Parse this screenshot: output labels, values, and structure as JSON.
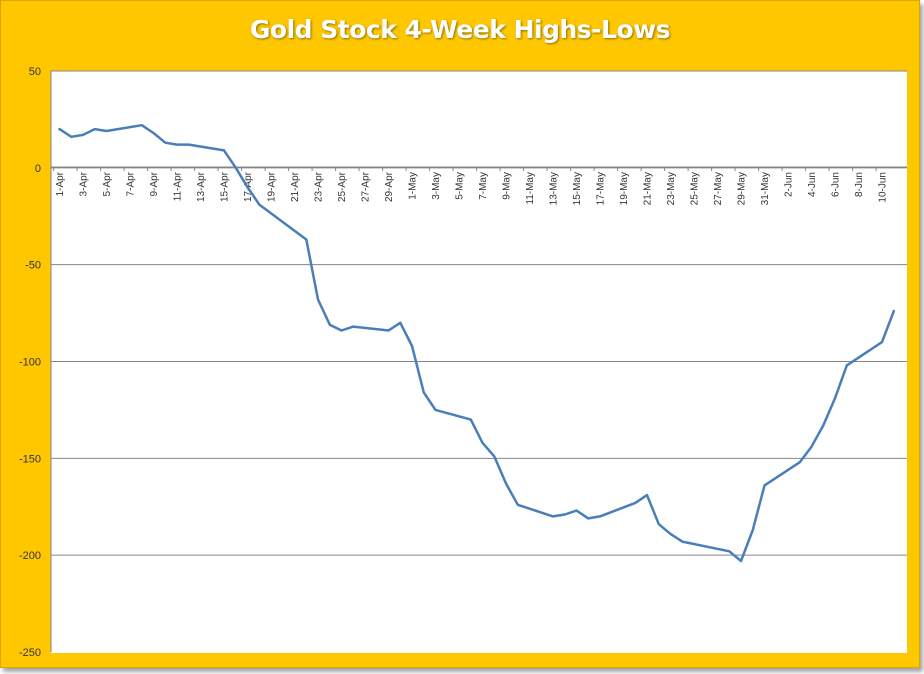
{
  "title": "Gold Stock 4-Week Highs-Lows",
  "colors": {
    "background": "#FFC700",
    "plot_background": "#FFFFFF",
    "series": "#4A7EBB",
    "gridline": "#868686",
    "title_text": "#FFFFFF"
  },
  "chart_data": {
    "type": "line",
    "title": "Gold Stock 4-Week Highs-Lows",
    "xlabel": "",
    "ylabel": "",
    "ylim": [
      -250,
      50
    ],
    "yticks": [
      50,
      0,
      -50,
      -100,
      -150,
      -200,
      -250
    ],
    "grid": true,
    "legend": "none",
    "x_tick_labels": [
      "1-Apr",
      "3-Apr",
      "5-Apr",
      "7-Apr",
      "9-Apr",
      "11-Apr",
      "13-Apr",
      "15-Apr",
      "17-Apr",
      "19-Apr",
      "21-Apr",
      "23-Apr",
      "25-Apr",
      "27-Apr",
      "29-Apr",
      "1-May",
      "3-May",
      "5-May",
      "7-May",
      "9-May",
      "11-May",
      "13-May",
      "15-May",
      "17-May",
      "19-May",
      "21-May",
      "23-May",
      "25-May",
      "27-May",
      "29-May",
      "31-May",
      "2-Jun",
      "4-Jun",
      "6-Jun",
      "8-Jun",
      "10-Jun"
    ],
    "series": [
      {
        "points": [
          [
            "1-Apr",
            20
          ],
          [
            "2-Apr",
            16
          ],
          [
            "3-Apr",
            17
          ],
          [
            "4-Apr",
            20
          ],
          [
            "5-Apr",
            19
          ],
          [
            "8-Apr",
            22
          ],
          [
            "9-Apr",
            18
          ],
          [
            "10-Apr",
            13
          ],
          [
            "11-Apr",
            12
          ],
          [
            "12-Apr",
            12
          ],
          [
            "15-Apr",
            9
          ],
          [
            "16-Apr",
            0
          ],
          [
            "17-Apr",
            -10
          ],
          [
            "18-Apr",
            -19
          ],
          [
            "22-Apr",
            -37
          ],
          [
            "23-Apr",
            -68
          ],
          [
            "24-Apr",
            -81
          ],
          [
            "25-Apr",
            -84
          ],
          [
            "26-Apr",
            -82
          ],
          [
            "29-Apr",
            -84
          ],
          [
            "30-Apr",
            -80
          ],
          [
            "1-May",
            -92
          ],
          [
            "2-May",
            -116
          ],
          [
            "3-May",
            -125
          ],
          [
            "6-May",
            -130
          ],
          [
            "7-May",
            -142
          ],
          [
            "8-May",
            -149
          ],
          [
            "9-May",
            -163
          ],
          [
            "10-May",
            -174
          ],
          [
            "13-May",
            -180
          ],
          [
            "14-May",
            -179
          ],
          [
            "15-May",
            -177
          ],
          [
            "16-May",
            -181
          ],
          [
            "17-May",
            -180
          ],
          [
            "20-May",
            -173
          ],
          [
            "21-May",
            -169
          ],
          [
            "22-May",
            -184
          ],
          [
            "23-May",
            -189
          ],
          [
            "24-May",
            -193
          ],
          [
            "28-May",
            -198
          ],
          [
            "29-May",
            -203
          ],
          [
            "30-May",
            -187
          ],
          [
            "31-May",
            -164
          ],
          [
            "3-Jun",
            -152
          ],
          [
            "4-Jun",
            -144
          ],
          [
            "5-Jun",
            -133
          ],
          [
            "6-Jun",
            -119
          ],
          [
            "7-Jun",
            -102
          ],
          [
            "10-Jun",
            -90
          ],
          [
            "11-Jun",
            -74
          ]
        ]
      }
    ]
  }
}
